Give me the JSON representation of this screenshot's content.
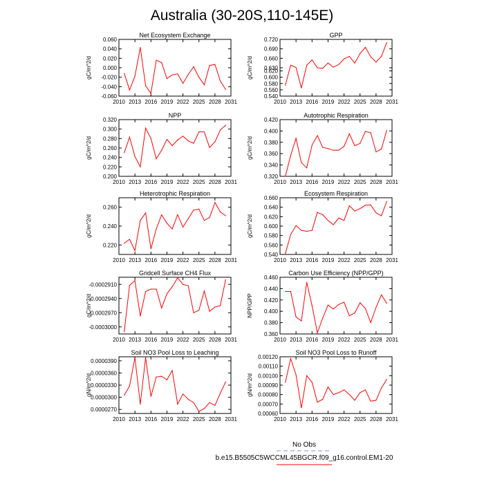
{
  "figure": {
    "title": "Australia (30-20S,110-145E)",
    "legend": [
      {
        "label": "No Obs",
        "color": "#8080ff",
        "dashed": true
      },
      {
        "label": "b.e15.B5505C5WCCML45BGCR.f09_g16.control.EM1-20",
        "color": "#ff0000",
        "dashed": false
      }
    ]
  },
  "chart_data": [
    {
      "type": "line",
      "title": "Net Ecosystem Exchange",
      "ylabel": "gC/m^2/d",
      "xlabel": "",
      "xlim": [
        2010,
        2031
      ],
      "xticks": [
        "2010",
        "2013",
        "2016",
        "2019",
        "2022",
        "2025",
        "2028",
        "2031"
      ],
      "ylim": [
        -0.06,
        0.06
      ],
      "yticks": [
        "-0.060",
        "-0.040",
        "-0.020",
        "0.000",
        "0.020",
        "0.040",
        "0.060"
      ],
      "series": [
        {
          "color": "#ff0000",
          "x": [
            2011,
            2012,
            2013,
            2014,
            2015,
            2016,
            2017,
            2018,
            2019,
            2020,
            2021,
            2022,
            2023,
            2024,
            2025,
            2026,
            2027,
            2028,
            2029,
            2030
          ],
          "y": [
            -0.012,
            -0.047,
            -0.018,
            0.043,
            -0.038,
            -0.054,
            0.016,
            0.011,
            -0.023,
            -0.015,
            -0.013,
            -0.033,
            -0.014,
            0.002,
            -0.02,
            -0.036,
            0.005,
            0.007,
            -0.028,
            -0.046
          ]
        }
      ]
    },
    {
      "type": "line",
      "title": "GPP",
      "ylabel": "gC/m^2/d",
      "xlabel": "",
      "xlim": [
        2010,
        2031
      ],
      "xticks": [
        "2010",
        "2013",
        "2016",
        "2019",
        "2022",
        "2025",
        "2028",
        "2031"
      ],
      "ylim": [
        0.54,
        0.72
      ],
      "yticks": [
        "0.540",
        "0.560",
        "0.580",
        "0.600",
        "0.620",
        "0.630",
        "0.660",
        "0.690",
        "0.720"
      ],
      "series": [
        {
          "color": "#ff0000",
          "x": [
            2011,
            2012,
            2013,
            2014,
            2015,
            2016,
            2017,
            2018,
            2019,
            2020,
            2021,
            2022,
            2023,
            2024,
            2025,
            2026,
            2027,
            2028,
            2029,
            2030
          ],
          "y": [
            0.575,
            0.638,
            0.631,
            0.566,
            0.638,
            0.655,
            0.63,
            0.628,
            0.645,
            0.632,
            0.64,
            0.658,
            0.666,
            0.645,
            0.675,
            0.695,
            0.665,
            0.648,
            0.666,
            0.71
          ]
        }
      ]
    },
    {
      "type": "line",
      "title": "NPP",
      "ylabel": "gC/m^2/d",
      "xlabel": "",
      "xlim": [
        2010,
        2031
      ],
      "xticks": [
        "2010",
        "2013",
        "2016",
        "2019",
        "2022",
        "2025",
        "2028",
        "2031"
      ],
      "ylim": [
        0.2,
        0.32
      ],
      "yticks": [
        "0.200",
        "0.220",
        "0.240",
        "0.260",
        "0.280",
        "0.300",
        "0.320"
      ],
      "series": [
        {
          "color": "#ff0000",
          "x": [
            2011,
            2012,
            2013,
            2014,
            2015,
            2016,
            2017,
            2018,
            2019,
            2020,
            2021,
            2022,
            2023,
            2024,
            2025,
            2026,
            2027,
            2028,
            2029,
            2030
          ],
          "y": [
            0.25,
            0.283,
            0.242,
            0.22,
            0.302,
            0.28,
            0.237,
            0.255,
            0.278,
            0.265,
            0.277,
            0.285,
            0.275,
            0.27,
            0.294,
            0.294,
            0.261,
            0.273,
            0.298,
            0.308
          ]
        }
      ]
    },
    {
      "type": "line",
      "title": "Autotrophic Respiration",
      "ylabel": "gC/m^2/d",
      "xlabel": "",
      "xlim": [
        2010,
        2031
      ],
      "xticks": [
        "2010",
        "2013",
        "2016",
        "2019",
        "2022",
        "2025",
        "2028",
        "2031"
      ],
      "ylim": [
        0.32,
        0.42
      ],
      "yticks": [
        "0.320",
        "0.340",
        "0.360",
        "0.380",
        "0.400",
        "0.420"
      ],
      "series": [
        {
          "color": "#ff0000",
          "x": [
            2011,
            2012,
            2013,
            2014,
            2015,
            2016,
            2017,
            2018,
            2019,
            2020,
            2021,
            2022,
            2023,
            2024,
            2025,
            2026,
            2027,
            2028,
            2029,
            2030
          ],
          "y": [
            0.32,
            0.357,
            0.387,
            0.344,
            0.335,
            0.375,
            0.392,
            0.371,
            0.369,
            0.366,
            0.366,
            0.373,
            0.395,
            0.374,
            0.378,
            0.399,
            0.397,
            0.363,
            0.368,
            0.401
          ]
        }
      ]
    },
    {
      "type": "line",
      "title": "Heterotrophic Respiration",
      "ylabel": "gC/m^2/d",
      "xlabel": "",
      "xlim": [
        2010,
        2031
      ],
      "xticks": [
        "2010",
        "2013",
        "2016",
        "2019",
        "2022",
        "2025",
        "2028",
        "2031"
      ],
      "ylim": [
        0.21,
        0.27
      ],
      "yticks": [
        "0.220",
        "0.240",
        "0.260"
      ],
      "series": [
        {
          "color": "#ff0000",
          "x": [
            2011,
            2012,
            2013,
            2014,
            2015,
            2016,
            2017,
            2018,
            2019,
            2020,
            2021,
            2022,
            2023,
            2024,
            2025,
            2026,
            2027,
            2028,
            2029,
            2030
          ],
          "y": [
            0.222,
            0.226,
            0.214,
            0.246,
            0.254,
            0.216,
            0.237,
            0.252,
            0.243,
            0.237,
            0.252,
            0.239,
            0.248,
            0.257,
            0.258,
            0.246,
            0.249,
            0.265,
            0.255,
            0.251
          ]
        }
      ]
    },
    {
      "type": "line",
      "title": "Ecosystem Respiration",
      "ylabel": "gC/m^2/d",
      "xlabel": "",
      "xlim": [
        2010,
        2031
      ],
      "xticks": [
        "2010",
        "2013",
        "2016",
        "2019",
        "2022",
        "2025",
        "2028",
        "2031"
      ],
      "ylim": [
        0.54,
        0.66
      ],
      "yticks": [
        "0.540",
        "0.560",
        "0.580",
        "0.600",
        "0.620",
        "0.640",
        "0.660"
      ],
      "series": [
        {
          "color": "#ff0000",
          "x": [
            2011,
            2012,
            2013,
            2014,
            2015,
            2016,
            2017,
            2018,
            2019,
            2020,
            2021,
            2022,
            2023,
            2024,
            2025,
            2026,
            2027,
            2028,
            2029,
            2030
          ],
          "y": [
            0.542,
            0.582,
            0.601,
            0.591,
            0.589,
            0.591,
            0.629,
            0.624,
            0.612,
            0.603,
            0.617,
            0.612,
            0.643,
            0.632,
            0.637,
            0.644,
            0.645,
            0.628,
            0.622,
            0.652
          ]
        }
      ]
    },
    {
      "type": "line",
      "title": "Gridcell Surface CH4 Flux",
      "ylabel": "gC/m^2/d",
      "xlabel": "",
      "xlim": [
        2010,
        2031
      ],
      "xticks": [
        "2010",
        "2013",
        "2016",
        "2019",
        "2022",
        "2025",
        "2028",
        "2031"
      ],
      "ylim": [
        -0.0003015,
        -0.0002895
      ],
      "yticks": [
        "-0.0003000",
        "-0.0002970",
        "-0.0002940",
        "-0.0002910"
      ],
      "series": [
        {
          "color": "#ff0000",
          "x": [
            2011,
            2012,
            2013,
            2014,
            2015,
            2016,
            2017,
            2018,
            2019,
            2020,
            2021,
            2022,
            2023,
            2024,
            2025,
            2026,
            2027,
            2028,
            2029,
            2030
          ],
          "y": [
            -0.000301,
            -0.0002912,
            -0.0002902,
            -0.0002977,
            -0.0002925,
            -0.000292,
            -0.000292,
            -0.000296,
            -0.000293,
            -0.0002915,
            -0.0002896,
            -0.000291,
            -0.0002913,
            -0.000297,
            -0.0002965,
            -0.0002924,
            -0.0002967,
            -0.0002958,
            -0.0002955,
            -0.00029
          ]
        }
      ]
    },
    {
      "type": "line",
      "title": "Carbon Use Efficiency (NPP/GPP)",
      "ylabel": "NPP/GPP",
      "xlabel": "",
      "xlim": [
        2010,
        2031
      ],
      "xticks": [
        "2010",
        "2013",
        "2016",
        "2019",
        "2022",
        "2025",
        "2028",
        "2031"
      ],
      "ylim": [
        0.36,
        0.46
      ],
      "yticks": [
        "0.360",
        "0.380",
        "0.400",
        "0.420",
        "0.440",
        "0.460"
      ],
      "series": [
        {
          "color": "#ff0000",
          "x": [
            2011,
            2012,
            2013,
            2014,
            2015,
            2016,
            2017,
            2018,
            2019,
            2020,
            2021,
            2022,
            2023,
            2024,
            2025,
            2026,
            2027,
            2028,
            2029,
            2030
          ],
          "y": [
            0.435,
            0.435,
            0.39,
            0.383,
            0.451,
            0.41,
            0.362,
            0.388,
            0.411,
            0.404,
            0.412,
            0.416,
            0.392,
            0.397,
            0.415,
            0.405,
            0.38,
            0.407,
            0.429,
            0.414
          ]
        }
      ]
    },
    {
      "type": "line",
      "title": "Soil NO3 Pool Loss to Leaching",
      "ylabel": "gN/m^2/d",
      "xlabel": "",
      "xlim": [
        2010,
        2031
      ],
      "xticks": [
        "2010",
        "2013",
        "2016",
        "2019",
        "2022",
        "2025",
        "2028",
        "2031"
      ],
      "ylim": [
        2.6e-05,
        4e-05
      ],
      "yticks": [
        "0.0000270",
        "0.0000300",
        "0.0000330",
        "0.0000360",
        "0.0000390"
      ],
      "series": [
        {
          "color": "#ff0000",
          "x": [
            2011,
            2012,
            2013,
            2014,
            2015,
            2016,
            2017,
            2018,
            2019,
            2020,
            2021,
            2022,
            2023,
            2024,
            2025,
            2026,
            2027,
            2028,
            2029,
            2030
          ],
          "y": [
            3.05e-05,
            3.28e-05,
            3.98e-05,
            2.83e-05,
            3.98e-05,
            3.02e-05,
            3.5e-05,
            3.52e-05,
            3.43e-05,
            3.66e-05,
            2.83e-05,
            3.08e-05,
            2.95e-05,
            2.87e-05,
            2.65e-05,
            2.72e-05,
            2.87e-05,
            2.8e-05,
            3.1e-05,
            3.38e-05
          ]
        }
      ]
    },
    {
      "type": "line",
      "title": "Soil NO3 Pool Loss to Runoff",
      "ylabel": "gN/m^2/d",
      "xlabel": "",
      "xlim": [
        2010,
        2031
      ],
      "xticks": [
        "2010",
        "2013",
        "2016",
        "2019",
        "2022",
        "2025",
        "2028",
        "2031"
      ],
      "ylim": [
        0.0006,
        0.0012
      ],
      "yticks": [
        "0.00060",
        "0.00070",
        "0.00080",
        "0.00090",
        "0.00100",
        "0.00110",
        "0.00120"
      ],
      "series": [
        {
          "color": "#ff0000",
          "x": [
            2011,
            2012,
            2013,
            2014,
            2015,
            2016,
            2017,
            2018,
            2019,
            2020,
            2021,
            2022,
            2023,
            2024,
            2025,
            2026,
            2027,
            2028,
            2029,
            2030
          ],
          "y": [
            0.00093,
            0.00118,
            0.00101,
            0.00066,
            0.001,
            0.00093,
            0.00072,
            0.00075,
            0.00088,
            0.0008,
            0.00082,
            0.00085,
            0.0008,
            0.00074,
            0.00082,
            0.00085,
            0.00073,
            0.00074,
            0.00087,
            0.00096
          ]
        }
      ]
    }
  ]
}
